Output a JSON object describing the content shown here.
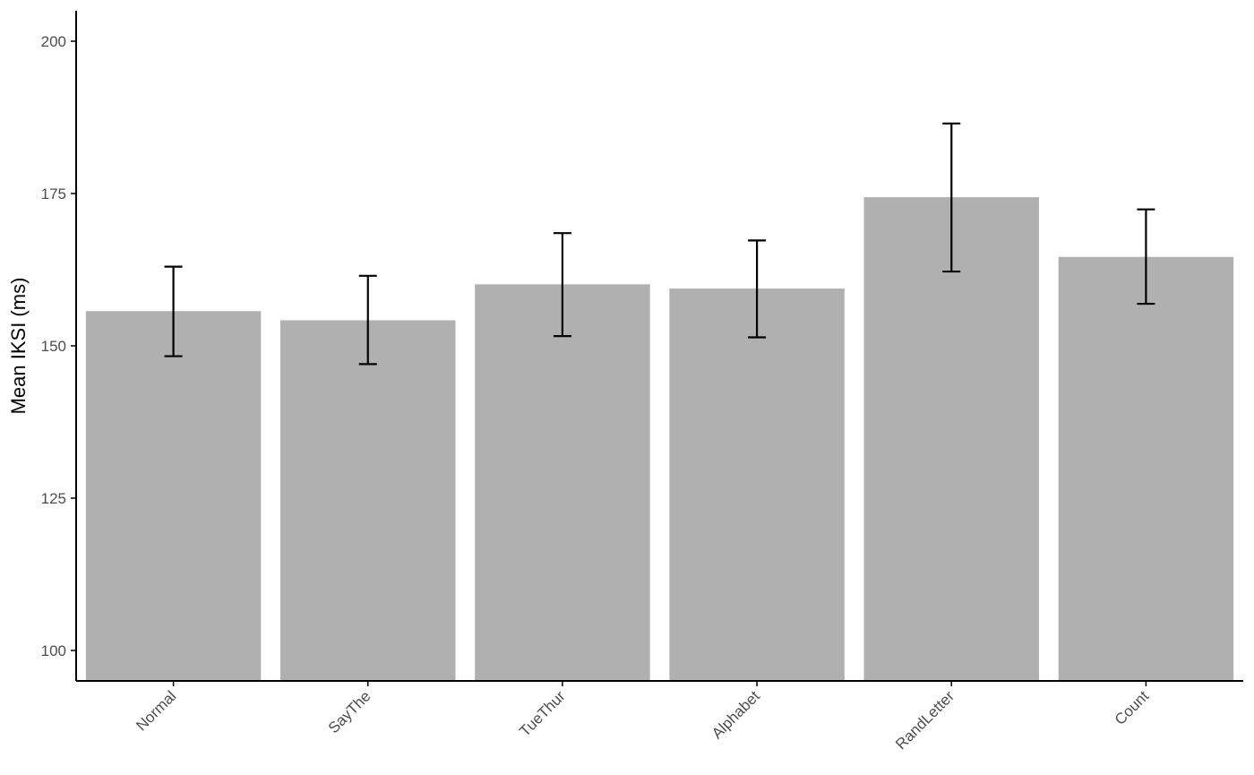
{
  "chart_data": {
    "type": "bar",
    "title": "",
    "xlabel": "",
    "ylabel": "Mean IKSI (ms)",
    "categories": [
      "Normal",
      "SayThe",
      "TueThur",
      "Alphabet",
      "RandLetter",
      "Count"
    ],
    "values": [
      155.7,
      154.2,
      160.1,
      159.4,
      174.4,
      164.6
    ],
    "error_low": [
      148.3,
      147.0,
      151.6,
      151.4,
      162.2,
      156.9
    ],
    "error_high": [
      163.0,
      161.5,
      168.5,
      167.3,
      186.5,
      172.4
    ],
    "ylim": [
      95,
      205
    ],
    "yticks": [
      100,
      125,
      150,
      175,
      200
    ],
    "grid": false,
    "legend": "none",
    "colors": {
      "bar": "#b0b0b0",
      "error_bar": "#000000",
      "axis": "#000000",
      "tick_text": "#4d4d4d"
    }
  }
}
